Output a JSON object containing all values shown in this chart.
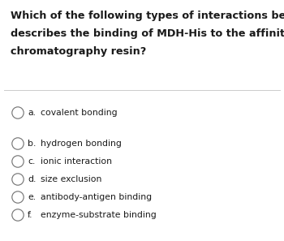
{
  "question_lines": [
    "Which of the following types of interactions best",
    "describes the binding of MDH-His to the affinity",
    "chromatography resin?"
  ],
  "options": [
    {
      "label": "a.",
      "text": "covalent bonding"
    },
    {
      "label": "b.",
      "text": "hydrogen bonding"
    },
    {
      "label": "c.",
      "text": "ionic interaction"
    },
    {
      "label": "d.",
      "text": "size exclusion"
    },
    {
      "label": "e.",
      "text": "antibody-antigen binding"
    },
    {
      "label": "f.",
      "text": "enzyme-substrate binding"
    }
  ],
  "background_color": "#ffffff",
  "text_color": "#1a1a1a",
  "circle_edge_color": "#777777",
  "divider_color": "#cccccc",
  "question_fontsize": 9.2,
  "option_fontsize": 7.8,
  "fig_width": 3.5,
  "fig_height": 2.97
}
